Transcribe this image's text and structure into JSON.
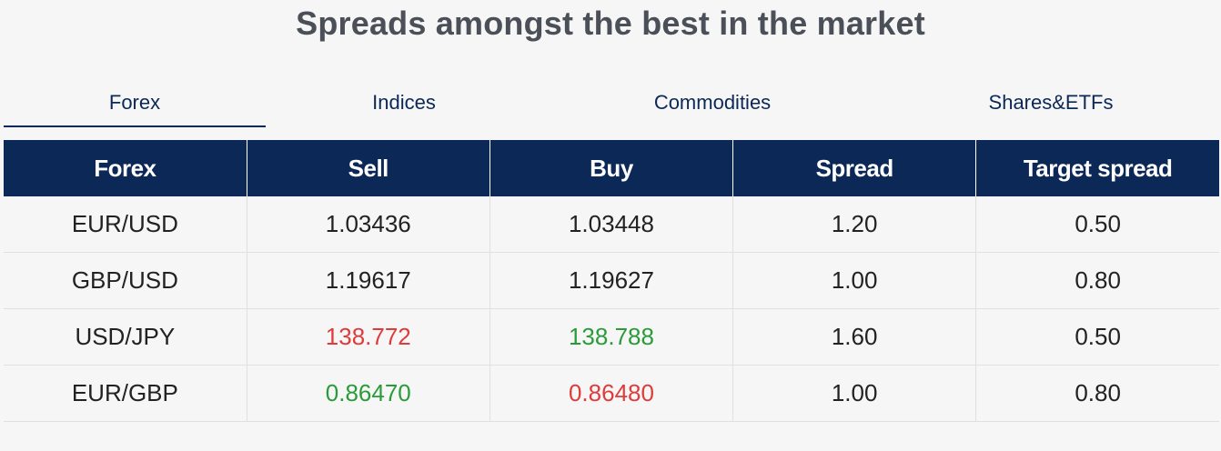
{
  "header": {
    "title": "Spreads amongst the best in the market"
  },
  "tabs": [
    {
      "label": "Forex",
      "active": true
    },
    {
      "label": "Indices",
      "active": false
    },
    {
      "label": "Commodities",
      "active": false
    },
    {
      "label": "Shares&ETFs",
      "active": false
    }
  ],
  "table": {
    "columns": [
      "Forex",
      "Sell",
      "Buy",
      "Spread",
      "Target spread"
    ],
    "rows": [
      {
        "instrument": "EUR/USD",
        "sell": "1.03436",
        "buy": "1.03448",
        "spread": "1.20",
        "target": "0.50",
        "sell_trend": "neutral",
        "buy_trend": "neutral"
      },
      {
        "instrument": "GBP/USD",
        "sell": "1.19617",
        "buy": "1.19627",
        "spread": "1.00",
        "target": "0.80",
        "sell_trend": "neutral",
        "buy_trend": "neutral"
      },
      {
        "instrument": "USD/JPY",
        "sell": "138.772",
        "buy": "138.788",
        "spread": "1.60",
        "target": "0.50",
        "sell_trend": "down",
        "buy_trend": "up"
      },
      {
        "instrument": "EUR/GBP",
        "sell": "0.86470",
        "buy": "0.86480",
        "spread": "1.00",
        "target": "0.80",
        "sell_trend": "up",
        "buy_trend": "down"
      }
    ]
  },
  "colors": {
    "navy": "#0b2857",
    "up": "#2a9b3a",
    "down": "#e03b3b"
  }
}
